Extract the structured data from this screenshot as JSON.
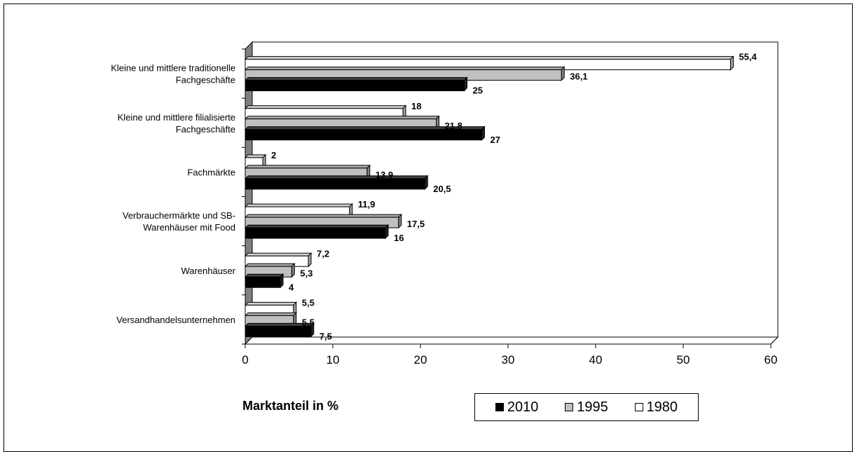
{
  "chart_data": {
    "type": "bar",
    "orientation": "horizontal",
    "categories": [
      [
        "Kleine und mittlere traditionelle",
        "Fachgeschäfte"
      ],
      [
        "Kleine und mittlere filialisierte",
        "Fachgeschäfte"
      ],
      [
        "Fachmärkte"
      ],
      [
        "Verbrauchermärkte und SB-",
        "Warenhäuser mit Food"
      ],
      [
        "Warenhäuser"
      ],
      [
        "Versandhandelsunternehmen"
      ]
    ],
    "series": [
      {
        "name": "1980",
        "color": "#ffffff",
        "values": [
          55.4,
          18,
          2,
          11.9,
          7.2,
          5.5
        ],
        "labels": [
          "55,4",
          "18",
          "2",
          "11,9",
          "7,2",
          "5,5"
        ]
      },
      {
        "name": "1995",
        "color": "#c0c0c0",
        "values": [
          36.1,
          21.8,
          13.9,
          17.5,
          5.3,
          5.5
        ],
        "labels": [
          "36,1",
          "21,8",
          "13,9",
          "17,5",
          "5,3",
          "5,5"
        ]
      },
      {
        "name": "2010",
        "color": "#000000",
        "values": [
          25,
          27,
          20.5,
          16,
          4,
          7.5
        ],
        "labels": [
          "25",
          "27",
          "20,5",
          "16",
          "4",
          "7,5"
        ]
      }
    ],
    "xlim": [
      0,
      60
    ],
    "xticks": [
      0,
      10,
      20,
      30,
      40,
      50,
      60
    ],
    "xlabel": "Marktanteil in %",
    "title": "",
    "grid": true,
    "legend": {
      "placement": "bottom",
      "entries": [
        {
          "name": "2010",
          "color": "#000000"
        },
        {
          "name": "1995",
          "color": "#c0c0c0"
        },
        {
          "name": "1980",
          "color": "#ffffff"
        }
      ]
    }
  }
}
